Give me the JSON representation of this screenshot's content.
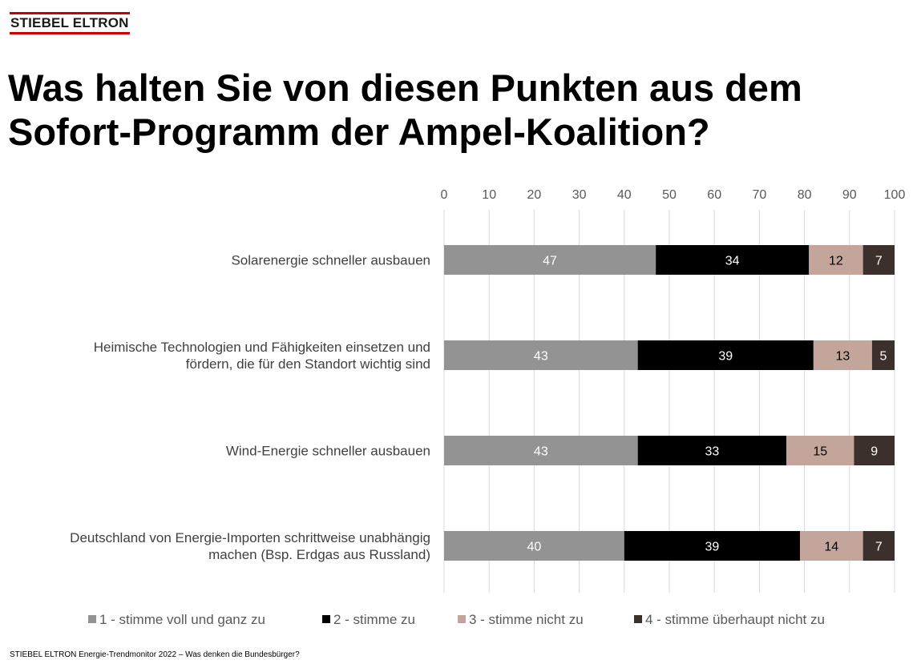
{
  "brand": {
    "logo_text": "STIEBEL ELTRON",
    "accent_color": "#cc0000"
  },
  "title": "Was halten Sie von diesen Punkten aus dem Sofort-Programm der Ampel-Koalition?",
  "footer": "STIEBEL ELTRON Energie-Trendmonitor 2022 – Was denken die Bundesbürger?",
  "chart_data": {
    "type": "bar",
    "orientation": "horizontal",
    "stacked": true,
    "title": "Was halten Sie von diesen Punkten aus dem Sofort-Programm der Ampel-Koalition?",
    "xlim": [
      0,
      100
    ],
    "x_ticks": [
      0,
      10,
      20,
      30,
      40,
      50,
      60,
      70,
      80,
      90,
      100
    ],
    "x_axis_position": "top",
    "grid": true,
    "legend_position": "bottom",
    "categories": [
      [
        "Solarenergie schneller ausbauen"
      ],
      [
        "Heimische Technologien und Fähigkeiten einsetzen und",
        "fördern, die für den Standort wichtig sind"
      ],
      [
        "Wind-Energie schneller ausbauen"
      ],
      [
        "Deutschland von Energie-Importen schrittweise unabhängig",
        "machen (Bsp. Erdgas aus Russland)"
      ]
    ],
    "series": [
      {
        "name": "1 - stimme voll und ganz zu",
        "color": "#939393",
        "label_color": "#ffffff",
        "values": [
          47,
          43,
          43,
          40
        ]
      },
      {
        "name": "2 - stimme zu",
        "color": "#000000",
        "label_color": "#ffffff",
        "values": [
          34,
          39,
          33,
          39
        ]
      },
      {
        "name": "3 - stimme nicht zu",
        "color": "#c4a59b",
        "label_color": "#000000",
        "values": [
          12,
          13,
          15,
          14
        ]
      },
      {
        "name": "4 - stimme überhaupt nicht zu",
        "color": "#3b302b",
        "label_color": "#ffffff",
        "values": [
          7,
          5,
          9,
          7
        ]
      }
    ]
  }
}
